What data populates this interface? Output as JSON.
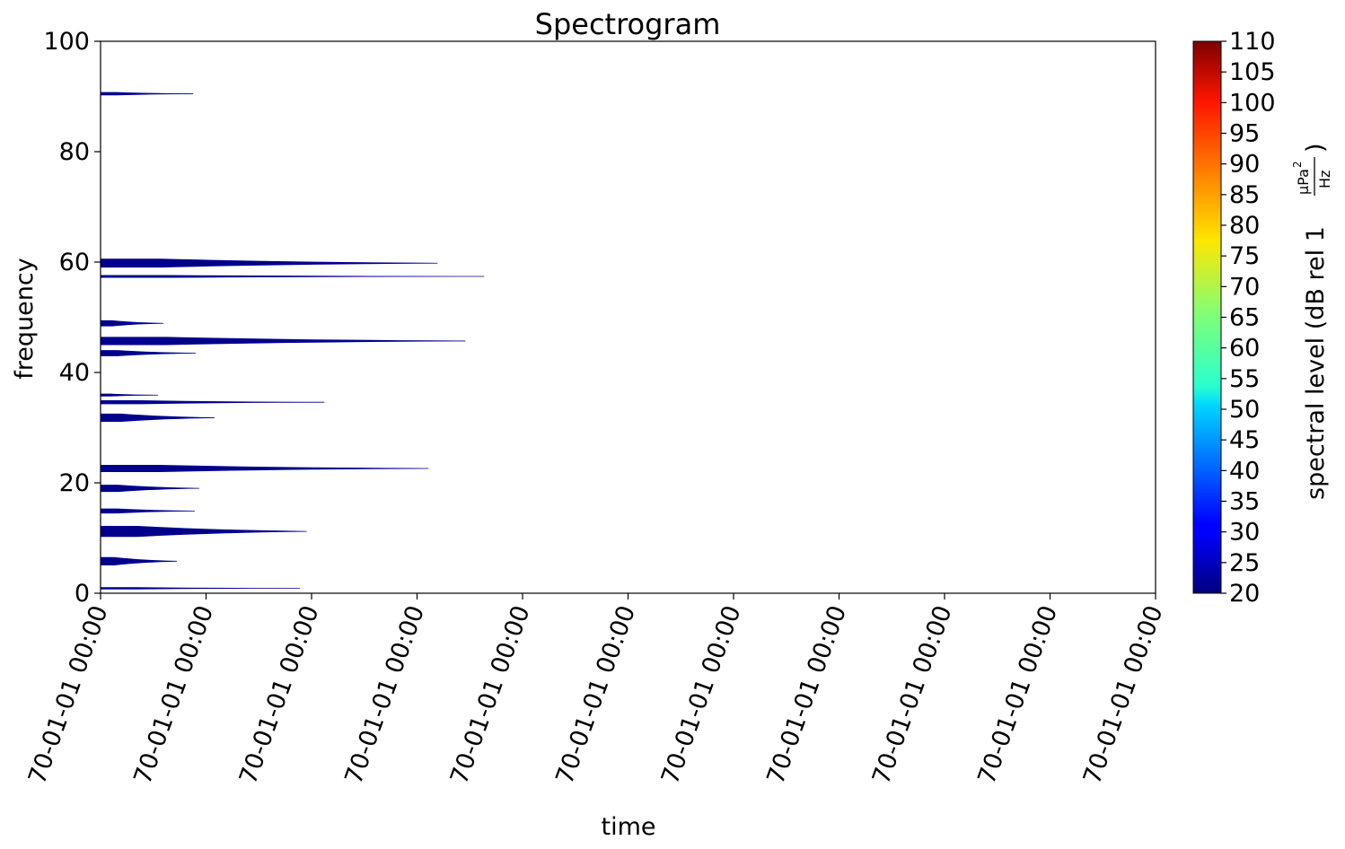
{
  "chart_data": {
    "type": "heatmap",
    "title": "Spectrogram",
    "xlabel": "time",
    "ylabel": "frequency",
    "ylim": [
      0,
      100
    ],
    "yticks": [
      "0",
      "20",
      "40",
      "60",
      "80",
      "100"
    ],
    "xticks": [
      "70-01-01 00:00",
      "70-01-01 00:00",
      "70-01-01 00:00",
      "70-01-01 00:00",
      "70-01-01 00:00",
      "70-01-01 00:00",
      "70-01-01 00:00",
      "70-01-01 00:00",
      "70-01-01 00:00",
      "70-01-01 00:00",
      "70-01-01 00:00"
    ],
    "colorbar": {
      "label_main": "spectral level (dB rel 1",
      "label_num": "μPa",
      "label_exp": "2",
      "label_den": "Hz",
      "label_close": ")",
      "range": [
        20,
        110
      ],
      "ticks": [
        "20",
        "25",
        "30",
        "35",
        "40",
        "45",
        "50",
        "55",
        "60",
        "65",
        "70",
        "75",
        "80",
        "85",
        "90",
        "95",
        "100",
        "105",
        "110"
      ],
      "colormap": "jet"
    },
    "bands": [
      {
        "freq_center": 0.9,
        "height": 0.4,
        "extent": 0.1889
      },
      {
        "freq_center": 5.8,
        "height": 1.5,
        "extent": 0.0724
      },
      {
        "freq_center": 11.2,
        "height": 2.0,
        "extent": 0.1955
      },
      {
        "freq_center": 14.9,
        "height": 0.9,
        "extent": 0.0893
      },
      {
        "freq_center": 19.0,
        "height": 1.3,
        "extent": 0.0936
      },
      {
        "freq_center": 22.6,
        "height": 1.3,
        "extent": 0.3109
      },
      {
        "freq_center": 31.8,
        "height": 1.5,
        "extent": 0.108
      },
      {
        "freq_center": 34.6,
        "height": 0.7,
        "extent": 0.2121
      },
      {
        "freq_center": 35.9,
        "height": 0.5,
        "extent": 0.0545
      },
      {
        "freq_center": 43.5,
        "height": 1.1,
        "extent": 0.0902
      },
      {
        "freq_center": 45.7,
        "height": 1.5,
        "extent": 0.3458
      },
      {
        "freq_center": 48.9,
        "height": 1.1,
        "extent": 0.0596
      },
      {
        "freq_center": 57.4,
        "height": 0.5,
        "extent": 0.3637
      },
      {
        "freq_center": 59.8,
        "height": 1.6,
        "extent": 0.3194
      },
      {
        "freq_center": 90.5,
        "height": 0.6,
        "extent": 0.0877
      }
    ],
    "band_color": "#00008b"
  }
}
